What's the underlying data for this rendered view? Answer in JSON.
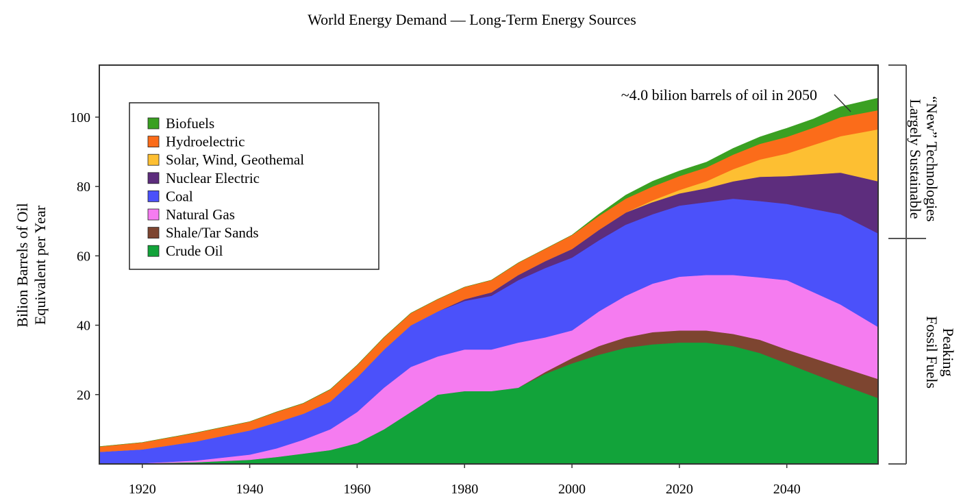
{
  "chart_data": {
    "type": "area",
    "stacked": true,
    "title": "World Energy Demand — Long-Term Energy Sources",
    "ylabel_line1": "Bilion Barrels of Oil",
    "ylabel_line2": "Equivalent per Year",
    "xlim": [
      1912,
      2057
    ],
    "ylim": [
      0,
      115
    ],
    "x_ticks": [
      1920,
      1940,
      1960,
      1980,
      2000,
      2020,
      2040
    ],
    "y_ticks": [
      20,
      40,
      60,
      80,
      100
    ],
    "grid": false,
    "legend": {
      "position": "top-left"
    },
    "x": [
      1912,
      1920,
      1930,
      1940,
      1945,
      1950,
      1955,
      1960,
      1965,
      1970,
      1975,
      1980,
      1985,
      1990,
      1995,
      2000,
      2005,
      2010,
      2015,
      2020,
      2025,
      2030,
      2035,
      2040,
      2045,
      2050,
      2057
    ],
    "series": [
      {
        "name": "Crude Oil",
        "color": "#12a33a",
        "values": [
          0,
          0.2,
          0.5,
          1.2,
          2,
          3,
          4,
          6,
          10,
          15,
          20,
          21,
          21,
          22,
          26,
          29,
          31.5,
          33.5,
          34.5,
          35,
          35,
          34,
          32,
          29,
          26,
          23,
          19
        ]
      },
      {
        "name": "Shale/Tar Sands",
        "color": "#7d4530",
        "values": [
          0,
          0,
          0,
          0,
          0,
          0,
          0,
          0,
          0,
          0,
          0,
          0,
          0,
          0,
          0.5,
          1.5,
          2.5,
          3,
          3.5,
          3.5,
          3.5,
          3.5,
          3.8,
          4,
          4.5,
          5,
          5.5
        ]
      },
      {
        "name": "Natural Gas",
        "color": "#f57cf0",
        "values": [
          0,
          0,
          0.5,
          1.5,
          2.5,
          4,
          6,
          9,
          12,
          13,
          11,
          12,
          12,
          13,
          10,
          8,
          10,
          12,
          14,
          15.5,
          16,
          17,
          18,
          20,
          19,
          18,
          15
        ]
      },
      {
        "name": "Coal",
        "color": "#4b51fa",
        "values": [
          3.5,
          4,
          5.5,
          7,
          7.5,
          7.5,
          8,
          10,
          11,
          12,
          13,
          14,
          15.5,
          18,
          20,
          21,
          20.5,
          20.5,
          20,
          20.5,
          21,
          22,
          22,
          22,
          24,
          26,
          27
        ]
      },
      {
        "name": "Nuclear Electric",
        "color": "#5d2d7d",
        "values": [
          0,
          0,
          0,
          0,
          0,
          0,
          0,
          0,
          0,
          0,
          0,
          0.5,
          1,
          1.5,
          2,
          2.5,
          3,
          3.5,
          3.5,
          3.5,
          4,
          5,
          7,
          8,
          10,
          12,
          15
        ]
      },
      {
        "name": "Solar, Wind, Geothemal",
        "color": "#fdbf32",
        "values": [
          0,
          0,
          0,
          0,
          0,
          0,
          0,
          0,
          0,
          0,
          0,
          0,
          0,
          0,
          0,
          0,
          0,
          0,
          0.5,
          1,
          2,
          3.5,
          5,
          6.5,
          8.5,
          10.5,
          15
        ]
      },
      {
        "name": "Hydroelectric",
        "color": "#fb6c1a",
        "values": [
          1.5,
          2,
          2.5,
          2.5,
          3,
          3,
          3.5,
          3.5,
          3.5,
          3.5,
          3.5,
          3.5,
          3.5,
          3.5,
          3.5,
          4,
          4,
          4,
          4,
          4,
          4,
          4.2,
          4.5,
          4.8,
          5,
          5.5,
          5.5
        ]
      },
      {
        "name": "Biofuels",
        "color": "#3aa022",
        "values": [
          0,
          0,
          0,
          0,
          0,
          0,
          0,
          0,
          0,
          0,
          0,
          0,
          0,
          0,
          0,
          0,
          0.5,
          1,
          1.5,
          1.5,
          1.5,
          1.8,
          2,
          2.5,
          2.5,
          3,
          3.5
        ]
      }
    ],
    "annotation": "~4.0 bilion barrels of oil in 2050",
    "right_upper_line1": "“New” Technologies",
    "right_upper_line2": "Largely Sustainable",
    "right_lower_line1": "Peaking",
    "right_lower_line2": "Fossil Fuels",
    "bracket_split_value": 65
  }
}
